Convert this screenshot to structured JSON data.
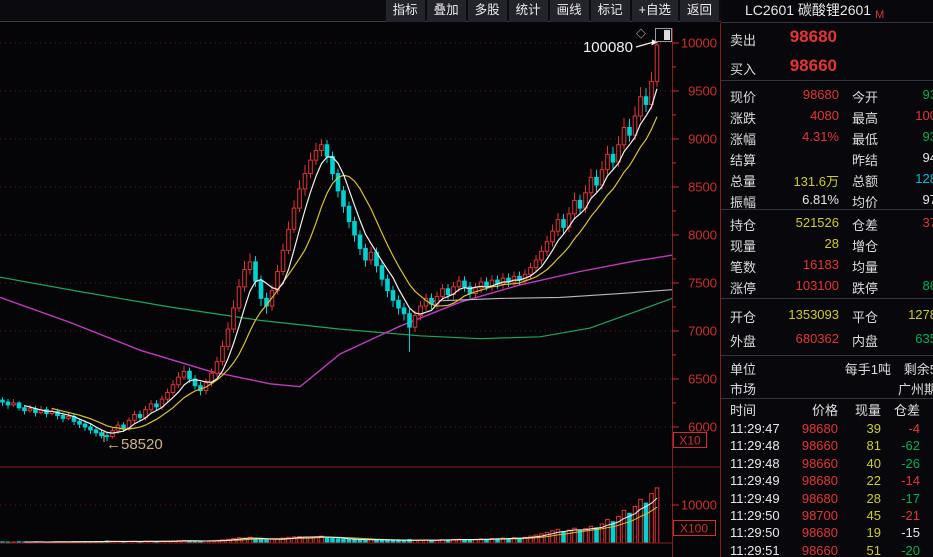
{
  "toolbar": {
    "buttons": [
      "指标",
      "叠加",
      "多股",
      "统计",
      "画线",
      "标记",
      "+自选",
      "返回"
    ]
  },
  "header": {
    "title": "LC2601 碳酸锂2601",
    "badge": "M"
  },
  "quote": {
    "ask_label": "卖出",
    "ask": "98680",
    "bid_label": "买入",
    "bid": "98660",
    "stats": [
      {
        "l": "现价",
        "v": "98680",
        "c": "red"
      },
      {
        "l": "今开",
        "v": "93",
        "c": "green"
      },
      {
        "l": "涨跌",
        "v": "4080",
        "c": "red"
      },
      {
        "l": "最高",
        "v": "100",
        "c": "red"
      },
      {
        "l": "涨幅",
        "v": "4.31%",
        "c": "red"
      },
      {
        "l": "最低",
        "v": "93",
        "c": "green"
      },
      {
        "l": "结算",
        "v": "",
        "c": "white"
      },
      {
        "l": "昨结",
        "v": "94",
        "c": "white"
      },
      {
        "l": "总量",
        "v": "131.6万",
        "c": "yellow"
      },
      {
        "l": "总额",
        "v": "128",
        "c": "cyan"
      },
      {
        "l": "振幅",
        "v": "6.81%",
        "c": "white"
      },
      {
        "l": "均价",
        "v": "97",
        "c": "white"
      }
    ],
    "position": [
      {
        "l": "持仓",
        "v": "521526",
        "c": "yellow"
      },
      {
        "l": "仓差",
        "v": "37",
        "c": "red"
      },
      {
        "l": "现量",
        "v": "28",
        "c": "yellow"
      },
      {
        "l": "增仓",
        "v": "",
        "c": "white"
      },
      {
        "l": "笔数",
        "v": "16183",
        "c": "red"
      },
      {
        "l": "均量",
        "v": "",
        "c": "white"
      },
      {
        "l": "涨停",
        "v": "103100",
        "c": "red"
      },
      {
        "l": "跌停",
        "v": "86",
        "c": "green"
      }
    ],
    "open_close": [
      {
        "l": "开仓",
        "v": "1353093",
        "c": "yellow"
      },
      {
        "l": "平仓",
        "v": "1278",
        "c": "yellow"
      },
      {
        "l": "外盘",
        "v": "680362",
        "c": "red"
      },
      {
        "l": "内盘",
        "v": "635",
        "c": "green"
      }
    ],
    "unit_label": "单位",
    "unit_value": "每手1吨",
    "unit_extra": "剩余5",
    "market_label": "市场",
    "market_value": "广州期"
  },
  "tape": {
    "headers": [
      "时间",
      "价格",
      "现量",
      "仓差"
    ],
    "rows": [
      {
        "t": "11:29:47",
        "p": "98680",
        "v": "39",
        "d": "-4",
        "dc": "red"
      },
      {
        "t": "11:29:48",
        "p": "98660",
        "v": "81",
        "d": "-62",
        "dc": "green"
      },
      {
        "t": "11:29:48",
        "p": "98660",
        "v": "40",
        "d": "-26",
        "dc": "green"
      },
      {
        "t": "11:29:49",
        "p": "98680",
        "v": "22",
        "d": "-14",
        "dc": "red"
      },
      {
        "t": "11:29:49",
        "p": "98680",
        "v": "28",
        "d": "-17",
        "dc": "green"
      },
      {
        "t": "11:29:50",
        "p": "98700",
        "v": "45",
        "d": "-21",
        "dc": "red"
      },
      {
        "t": "11:29:50",
        "p": "98680",
        "v": "19",
        "d": "-15",
        "dc": "white"
      },
      {
        "t": "11:29:51",
        "p": "98660",
        "v": "51",
        "d": "-20",
        "dc": "green"
      }
    ]
  },
  "chart_data": {
    "type": "candlestick",
    "title": "LC2601 碳酸锂2601",
    "y_axis": {
      "labels": [
        "10000",
        "9500",
        "9000",
        "8500",
        "8000",
        "7500",
        "7000",
        "6500",
        "6000"
      ],
      "multiplier": "X10",
      "range": [
        55800,
        100500
      ]
    },
    "volume_axis": {
      "labels": [
        "10000"
      ],
      "multiplier": "X100"
    },
    "annotations": {
      "high": "100080",
      "low": "←58520"
    },
    "colors": {
      "up": "#e23333",
      "down": "#00d2d2",
      "ma_short": "#f2f2f2",
      "ma_mid": "#d9c22f",
      "ma_long_magenta": "#c23ac2",
      "ma_slow_green": "#19a85c",
      "ma_flat_gray": "#b9b9b9",
      "axis": "#cf2e2e",
      "grid": "#6e1717",
      "frame": "#8a1c1c"
    },
    "first_open": 62800,
    "candles": [
      [
        63100,
        62200,
        62600
      ],
      [
        62900,
        61900,
        62300
      ],
      [
        62900,
        62100,
        62500
      ],
      [
        62700,
        61700,
        62000
      ],
      [
        62300,
        61300,
        61700
      ],
      [
        62300,
        61500,
        61900
      ],
      [
        62200,
        61100,
        61500
      ],
      [
        62200,
        61300,
        61800
      ],
      [
        62100,
        61000,
        61400
      ],
      [
        62000,
        61200,
        61600
      ],
      [
        61900,
        60800,
        61200
      ],
      [
        61500,
        60500,
        60900
      ],
      [
        61500,
        60700,
        61100
      ],
      [
        61400,
        60200,
        60600
      ],
      [
        60900,
        59900,
        60300
      ],
      [
        60700,
        59600,
        60000
      ],
      [
        60300,
        59300,
        59700
      ],
      [
        60000,
        59000,
        59400
      ],
      [
        59700,
        58800,
        59100
      ],
      [
        59500,
        58520,
        59000
      ],
      [
        59900,
        58800,
        59600
      ],
      [
        60600,
        59300,
        60200
      ],
      [
        60500,
        59500,
        59900
      ],
      [
        61000,
        59600,
        60700
      ],
      [
        61700,
        60400,
        61300
      ],
      [
        61700,
        60600,
        61000
      ],
      [
        62200,
        60700,
        61800
      ],
      [
        62800,
        61500,
        62400
      ],
      [
        62800,
        61700,
        62100
      ],
      [
        63300,
        61800,
        62900
      ],
      [
        64000,
        62600,
        63600
      ],
      [
        64900,
        63300,
        64400
      ],
      [
        65700,
        64100,
        65200
      ],
      [
        66400,
        64900,
        65800
      ],
      [
        66200,
        64600,
        65000
      ],
      [
        65400,
        63900,
        64300
      ],
      [
        64700,
        63300,
        63800
      ],
      [
        65000,
        63400,
        64600
      ],
      [
        66100,
        64200,
        65600
      ],
      [
        67300,
        65200,
        66800
      ],
      [
        69000,
        66400,
        68400
      ],
      [
        70900,
        68000,
        70200
      ],
      [
        73200,
        69800,
        72400
      ],
      [
        75400,
        72000,
        74600
      ],
      [
        77300,
        74100,
        76400
      ],
      [
        78080,
        75900,
        77200
      ],
      [
        77800,
        74600,
        75200
      ],
      [
        75800,
        72600,
        73400
      ],
      [
        74000,
        71800,
        72600
      ],
      [
        74800,
        72100,
        74200
      ],
      [
        76900,
        73800,
        76200
      ],
      [
        79100,
        75800,
        78400
      ],
      [
        81400,
        78000,
        80600
      ],
      [
        83600,
        80200,
        82800
      ],
      [
        85700,
        82400,
        84800
      ],
      [
        87300,
        84100,
        86400
      ],
      [
        88600,
        85900,
        87800
      ],
      [
        89600,
        87300,
        88800
      ],
      [
        89980,
        88200,
        89400
      ],
      [
        89900,
        87500,
        88200
      ],
      [
        88700,
        85700,
        86400
      ],
      [
        86900,
        83900,
        84600
      ],
      [
        85100,
        82300,
        83000
      ],
      [
        83500,
        80700,
        81400
      ],
      [
        81900,
        79300,
        80000
      ],
      [
        80500,
        77900,
        78600
      ],
      [
        79100,
        76700,
        77400
      ],
      [
        78800,
        76900,
        78200
      ],
      [
        78700,
        76100,
        76800
      ],
      [
        77300,
        74700,
        75400
      ],
      [
        75900,
        73500,
        74200
      ],
      [
        74700,
        72500,
        73200
      ],
      [
        73700,
        71700,
        72400
      ],
      [
        72900,
        71100,
        71800
      ],
      [
        72300,
        67820,
        70400
      ],
      [
        72100,
        69900,
        71600
      ],
      [
        73100,
        71100,
        72600
      ],
      [
        73900,
        72100,
        73400
      ],
      [
        73900,
        72300,
        72800
      ],
      [
        74100,
        72300,
        73600
      ],
      [
        74900,
        73100,
        74400
      ],
      [
        74900,
        73300,
        73800
      ],
      [
        75100,
        73300,
        74600
      ],
      [
        75700,
        74100,
        75200
      ],
      [
        75700,
        74100,
        74600
      ],
      [
        75100,
        73400,
        73900
      ],
      [
        75000,
        73400,
        74500
      ],
      [
        75600,
        74000,
        75100
      ],
      [
        75600,
        74200,
        74700
      ],
      [
        75800,
        74200,
        75300
      ],
      [
        75800,
        74400,
        74900
      ],
      [
        76000,
        74400,
        75500
      ],
      [
        76000,
        74600,
        75100
      ],
      [
        76200,
        74600,
        75700
      ],
      [
        76200,
        74800,
        75300
      ],
      [
        76400,
        74800,
        75900
      ],
      [
        77100,
        75400,
        76600
      ],
      [
        77900,
        76100,
        77400
      ],
      [
        78900,
        76900,
        78300
      ],
      [
        79900,
        77800,
        79300
      ],
      [
        81100,
        78800,
        80400
      ],
      [
        82300,
        79900,
        81600
      ],
      [
        82200,
        80100,
        80800
      ],
      [
        82900,
        80300,
        82200
      ],
      [
        84400,
        81700,
        83600
      ],
      [
        84200,
        82100,
        82800
      ],
      [
        85200,
        82300,
        84400
      ],
      [
        86900,
        83900,
        86000
      ],
      [
        86800,
        84500,
        85200
      ],
      [
        87700,
        84700,
        86800
      ],
      [
        89300,
        86300,
        88400
      ],
      [
        89200,
        86900,
        87600
      ],
      [
        90300,
        87100,
        89400
      ],
      [
        92200,
        88900,
        91200
      ],
      [
        92100,
        89700,
        90400
      ],
      [
        93400,
        89900,
        92400
      ],
      [
        95400,
        91900,
        94400
      ],
      [
        95300,
        92800,
        93600
      ],
      [
        97000,
        93100,
        96000
      ],
      [
        100080,
        95400,
        99800
      ]
    ],
    "volumes": [
      300,
      250,
      280,
      320,
      260,
      240,
      300,
      280,
      260,
      300,
      340,
      320,
      280,
      360,
      330,
      380,
      360,
      400,
      380,
      520,
      450,
      420,
      380,
      400,
      430,
      380,
      450,
      480,
      420,
      460,
      500,
      560,
      620,
      680,
      560,
      480,
      440,
      520,
      600,
      700,
      850,
      1000,
      1200,
      1400,
      1300,
      1500,
      1100,
      900,
      800,
      950,
      1100,
      1300,
      1500,
      1600,
      1700,
      1600,
      1500,
      1600,
      1800,
      1400,
      1200,
      1100,
      1000,
      950,
      900,
      850,
      800,
      900,
      850,
      800,
      750,
      700,
      680,
      650,
      900,
      700,
      750,
      800,
      700,
      750,
      900,
      850,
      950,
      1000,
      900,
      850,
      950,
      1100,
      1000,
      1200,
      1100,
      1300,
      1200,
      1400,
      1300,
      1500,
      1800,
      2100,
      2400,
      2800,
      3200,
      3600,
      3000,
      3400,
      3900,
      3300,
      3800,
      4400,
      4000,
      5000,
      6200,
      5600,
      7000,
      8600,
      7800,
      9600,
      11500,
      10500,
      13000,
      14500
    ],
    "overlays": {
      "magenta": [
        [
          0,
          73500
        ],
        [
          70,
          70900
        ],
        [
          140,
          68000
        ],
        [
          210,
          65800
        ],
        [
          270,
          64500
        ],
        [
          300,
          64200
        ],
        [
          340,
          67600
        ],
        [
          400,
          70500
        ],
        [
          460,
          73000
        ],
        [
          520,
          74800
        ],
        [
          580,
          76200
        ],
        [
          630,
          77200
        ],
        [
          672,
          77900
        ]
      ],
      "green": [
        [
          0,
          75600
        ],
        [
          80,
          74100
        ],
        [
          170,
          72500
        ],
        [
          260,
          71100
        ],
        [
          340,
          70200
        ],
        [
          420,
          69500
        ],
        [
          480,
          69200
        ],
        [
          540,
          69400
        ],
        [
          590,
          70300
        ],
        [
          630,
          71800
        ],
        [
          672,
          73400
        ]
      ],
      "gray": [
        [
          430,
          73100
        ],
        [
          500,
          73400
        ],
        [
          560,
          73500
        ],
        [
          620,
          73900
        ],
        [
          672,
          74300
        ]
      ]
    }
  }
}
